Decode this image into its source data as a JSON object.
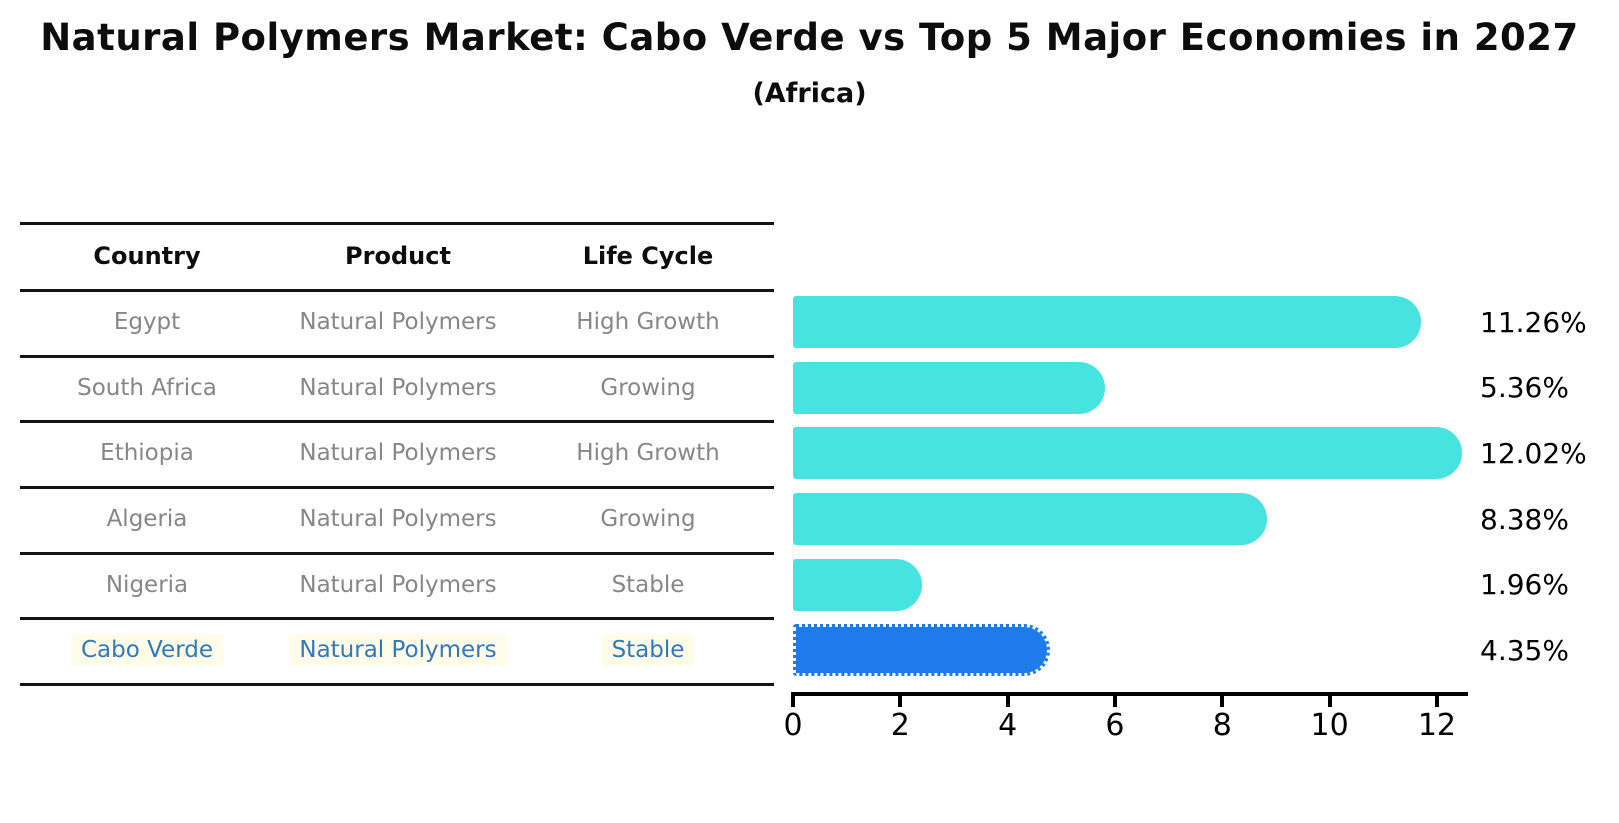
{
  "title": "Natural Polymers Market: Cabo Verde vs Top 5 Major Economies in 2027",
  "subtitle": "(Africa)",
  "table": {
    "headers": [
      "Country",
      "Product",
      "Life Cycle"
    ],
    "rows": [
      {
        "country": "Egypt",
        "product": "Natural Polymers",
        "life_cycle": "High Growth",
        "highlight": false
      },
      {
        "country": "South Africa",
        "product": "Natural Polymers",
        "life_cycle": "Growing",
        "highlight": false
      },
      {
        "country": "Ethiopia",
        "product": "Natural Polymers",
        "life_cycle": "High Growth",
        "highlight": false
      },
      {
        "country": "Algeria",
        "product": "Natural Polymers",
        "life_cycle": "Growing",
        "highlight": false
      },
      {
        "country": "Nigeria",
        "product": "Natural Polymers",
        "life_cycle": "Stable",
        "highlight": false
      },
      {
        "country": "Cabo Verde",
        "product": "Natural Polymers",
        "life_cycle": "Stable",
        "highlight": true
      }
    ]
  },
  "chart_data": {
    "type": "bar",
    "orientation": "horizontal",
    "title": "Natural Polymers Market: Cabo Verde vs Top 5 Major Economies in 2027",
    "subtitle": "(Africa)",
    "categories": [
      "Egypt",
      "South Africa",
      "Ethiopia",
      "Algeria",
      "Nigeria",
      "Cabo Verde"
    ],
    "values": [
      11.26,
      5.36,
      12.02,
      8.38,
      1.96,
      4.35
    ],
    "value_labels": [
      "11.26%",
      "5.36%",
      "12.02%",
      "8.38%",
      "1.96%",
      "4.35%"
    ],
    "x_ticks": [
      0,
      2,
      4,
      6,
      8,
      10,
      12
    ],
    "xlim": [
      0,
      12.6
    ],
    "grid": false,
    "legend": "none",
    "bar_color": "#46e3e0",
    "highlight_bar_color": "#1e7be9",
    "highlight_index": 5,
    "highlight_text_color": "#2e79bf"
  }
}
